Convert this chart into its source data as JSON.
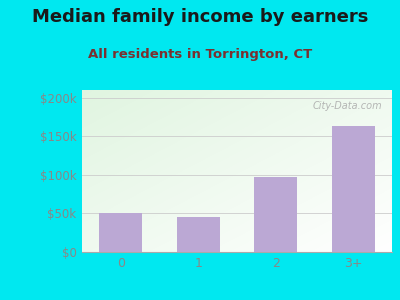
{
  "title": "Median family income by earners",
  "subtitle": "All residents in Torrington, CT",
  "categories": [
    "0",
    "1",
    "2",
    "3+"
  ],
  "values": [
    50000,
    45000,
    97000,
    163000
  ],
  "bar_color": "#bba8d4",
  "background_outer": "#00e8f0",
  "title_color": "#1a1a1a",
  "subtitle_color": "#7a3030",
  "tick_color": "#888888",
  "ylim": [
    0,
    210000
  ],
  "yticks": [
    0,
    50000,
    100000,
    150000,
    200000
  ],
  "ytick_labels": [
    "$0",
    "$50k",
    "$100k",
    "$150k",
    "$200k"
  ],
  "watermark": "City-Data.com",
  "title_fontsize": 13,
  "subtitle_fontsize": 9.5,
  "tick_fontsize": 8.5
}
